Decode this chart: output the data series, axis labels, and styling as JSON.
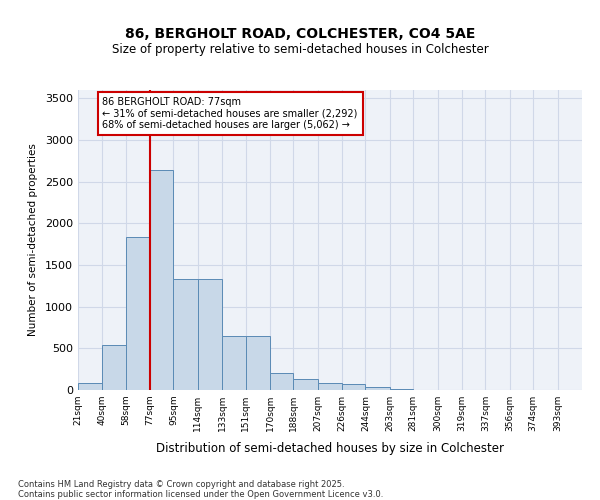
{
  "title1": "86, BERGHOLT ROAD, COLCHESTER, CO4 5AE",
  "title2": "Size of property relative to semi-detached houses in Colchester",
  "xlabel": "Distribution of semi-detached houses by size in Colchester",
  "ylabel": "Number of semi-detached properties",
  "footnote": "Contains HM Land Registry data © Crown copyright and database right 2025.\nContains public sector information licensed under the Open Government Licence v3.0.",
  "bin_labels": [
    "21sqm",
    "40sqm",
    "58sqm",
    "77sqm",
    "95sqm",
    "114sqm",
    "133sqm",
    "151sqm",
    "170sqm",
    "188sqm",
    "207sqm",
    "226sqm",
    "244sqm",
    "263sqm",
    "281sqm",
    "300sqm",
    "319sqm",
    "337sqm",
    "356sqm",
    "374sqm",
    "393sqm"
  ],
  "bar_values": [
    80,
    540,
    1840,
    2640,
    1330,
    1330,
    650,
    650,
    200,
    130,
    90,
    70,
    40,
    10,
    5,
    0,
    0,
    0,
    0,
    0,
    0
  ],
  "bin_edges": [
    21,
    40,
    58,
    77,
    95,
    114,
    133,
    151,
    170,
    188,
    207,
    226,
    244,
    263,
    281,
    300,
    319,
    337,
    356,
    374,
    393
  ],
  "property_size": 77,
  "property_label": "86 BERGHOLT ROAD: 77sqm",
  "pct_smaller": 31,
  "pct_larger": 68,
  "n_smaller": 2292,
  "n_larger": 5062,
  "bar_color": "#c8d8e8",
  "bar_edge_color": "#5a8ab5",
  "vline_color": "#cc0000",
  "annotation_box_color": "#cc0000",
  "background_color": "#ffffff",
  "grid_color": "#d0d8e8",
  "ylim": [
    0,
    3600
  ],
  "yticks": [
    0,
    500,
    1000,
    1500,
    2000,
    2500,
    3000,
    3500
  ]
}
